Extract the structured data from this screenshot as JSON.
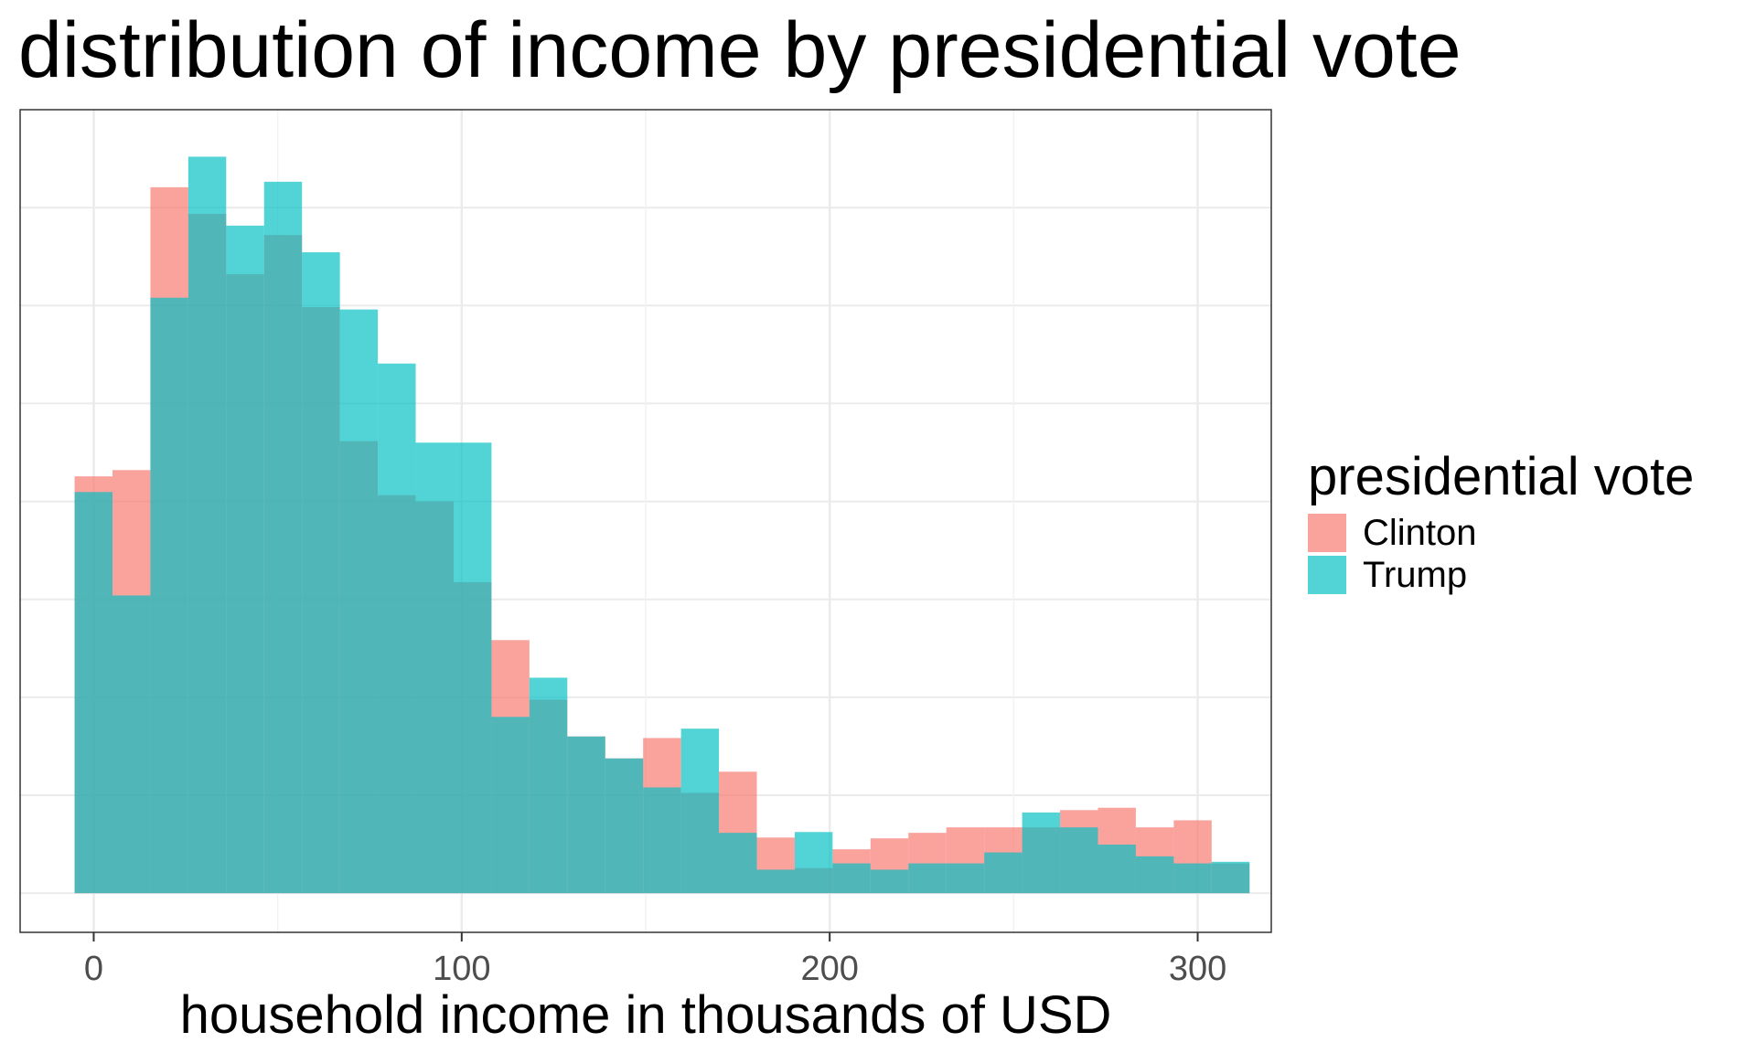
{
  "chart_data": {
    "type": "histogram",
    "title": "distribution of income by presidential vote",
    "xlabel": "household income in thousands of USD",
    "ylabel": "",
    "xlim": [
      -20,
      320
    ],
    "ylim": [
      -0.05,
      1.0
    ],
    "x_ticks": [
      0,
      100,
      200,
      300
    ],
    "y_gridlines": [
      0,
      0.125,
      0.25,
      0.375,
      0.5,
      0.625,
      0.75,
      0.875
    ],
    "bin_width": 10.3,
    "bin_start": -5.2,
    "grid": true,
    "legend_title": "presidential vote",
    "legend_position": "right",
    "series": [
      {
        "name": "Clinton",
        "color": "#F8766D",
        "values": [
          0.532,
          0.54,
          0.901,
          0.867,
          0.79,
          0.84,
          0.748,
          0.577,
          0.508,
          0.5,
          0.397,
          0.323,
          0.247,
          0.2,
          0.172,
          0.198,
          0.128,
          0.155,
          0.071,
          0.032,
          0.056,
          0.07,
          0.077,
          0.084,
          0.084,
          0.084,
          0.106,
          0.109,
          0.084,
          0.093,
          0.038
        ]
      },
      {
        "name": "Trump",
        "color": "#00BFC4",
        "values": [
          0.512,
          0.38,
          0.76,
          0.94,
          0.852,
          0.908,
          0.818,
          0.745,
          0.676,
          0.575,
          0.575,
          0.225,
          0.275,
          0.2,
          0.172,
          0.135,
          0.21,
          0.077,
          0.03,
          0.078,
          0.038,
          0.03,
          0.038,
          0.038,
          0.052,
          0.103,
          0.084,
          0.062,
          0.047,
          0.038,
          0.04
        ]
      }
    ]
  }
}
